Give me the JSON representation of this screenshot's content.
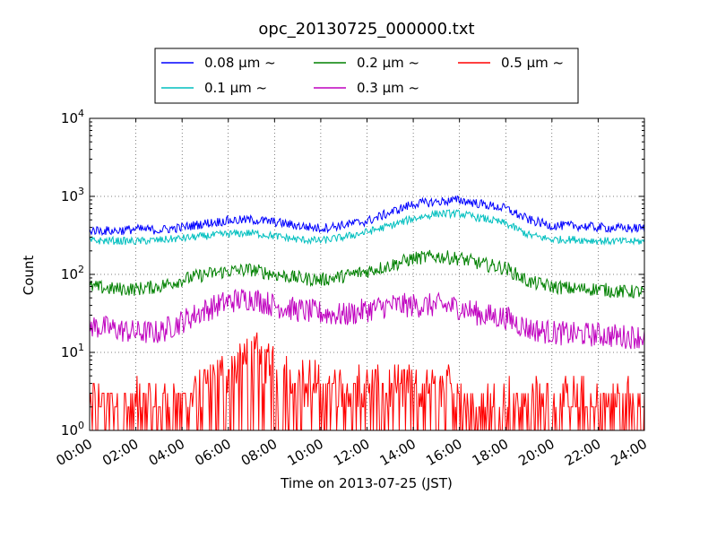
{
  "chart_data": {
    "type": "line",
    "title": "opc_20130725_000000.txt",
    "xlabel": "Time on 2013-07-25 (JST)",
    "ylabel": "Count",
    "y_scale": "log",
    "xlim": [
      "00:00",
      "24:00"
    ],
    "ylim": [
      1,
      10000
    ],
    "grid": true,
    "legend_position": "top-center, above plot",
    "x_ticks": [
      "00:00",
      "02:00",
      "04:00",
      "06:00",
      "08:00",
      "10:00",
      "12:00",
      "14:00",
      "16:00",
      "18:00",
      "20:00",
      "22:00",
      "24:00"
    ],
    "y_ticks": [
      {
        "value": 1,
        "base": "10",
        "exp": "0"
      },
      {
        "value": 10,
        "base": "10",
        "exp": "1"
      },
      {
        "value": 100,
        "base": "10",
        "exp": "2"
      },
      {
        "value": 1000,
        "base": "10",
        "exp": "3"
      },
      {
        "value": 10000,
        "base": "10",
        "exp": "4"
      }
    ],
    "x_hours": [
      0,
      1,
      2,
      3,
      4,
      5,
      6,
      7,
      8,
      9,
      10,
      11,
      12,
      13,
      14,
      15,
      16,
      17,
      18,
      19,
      20,
      21,
      22,
      23,
      24
    ],
    "series": [
      {
        "name": "0.08 μm ~",
        "color": "#0000ff",
        "values": [
          370,
          360,
          380,
          370,
          400,
          450,
          490,
          500,
          470,
          420,
          390,
          430,
          480,
          620,
          800,
          850,
          900,
          790,
          700,
          500,
          420,
          420,
          400,
          390,
          390
        ]
      },
      {
        "name": "0.1 μm ~",
        "color": "#00bfbf",
        "values": [
          270,
          270,
          265,
          275,
          290,
          310,
          330,
          340,
          310,
          280,
          270,
          300,
          350,
          420,
          520,
          600,
          600,
          520,
          450,
          320,
          280,
          280,
          270,
          265,
          265
        ]
      },
      {
        "name": "0.2 μm ~",
        "color": "#008000",
        "values": [
          70,
          65,
          65,
          70,
          85,
          100,
          110,
          115,
          100,
          90,
          85,
          95,
          110,
          130,
          160,
          170,
          160,
          135,
          120,
          80,
          70,
          65,
          65,
          60,
          60
        ]
      },
      {
        "name": "0.3 μm ~",
        "color": "#bf00bf",
        "values": [
          22,
          20,
          18,
          18,
          25,
          35,
          45,
          50,
          40,
          35,
          32,
          30,
          35,
          40,
          40,
          40,
          38,
          30,
          28,
          20,
          18,
          17,
          17,
          16,
          16
        ]
      },
      {
        "name": "0.5 μm ~",
        "color": "#ff0000",
        "values": [
          2,
          2,
          2,
          2,
          2,
          3,
          5,
          8,
          6,
          4,
          3,
          3,
          3,
          3,
          3,
          3,
          3,
          2,
          2,
          2,
          2,
          2,
          2,
          2,
          2
        ]
      }
    ]
  }
}
